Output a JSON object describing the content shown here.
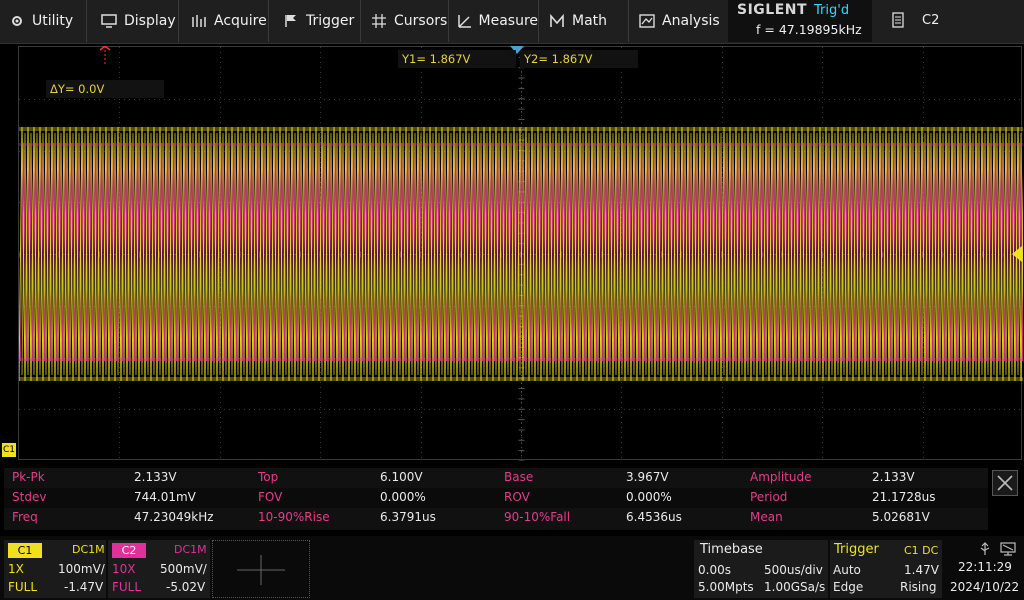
{
  "menu": {
    "utility": "Utility",
    "display": "Display",
    "acquire": "Acquire",
    "trigger": "Trigger",
    "cursors": "Cursors",
    "measure": "Measure",
    "math": "Math",
    "analysis": "Analysis"
  },
  "brand": {
    "logo": "SIGLENT",
    "trig_state": "Trig'd",
    "freq": "f = 47.19895kHz"
  },
  "channel_select": "C2",
  "cursors": {
    "y1": "Y1= 1.867V",
    "y2": "Y2= 1.867V",
    "delta": "ΔY= 0.0V"
  },
  "grid_marker": "C1",
  "measurements": [
    {
      "label": "Pk-Pk",
      "value": "2.133V"
    },
    {
      "label": "Top",
      "value": "6.100V"
    },
    {
      "label": "Base",
      "value": "3.967V"
    },
    {
      "label": "Amplitude",
      "value": "2.133V"
    },
    {
      "label": "Stdev",
      "value": "744.01mV"
    },
    {
      "label": "FOV",
      "value": "0.000%"
    },
    {
      "label": "ROV",
      "value": "0.000%"
    },
    {
      "label": "Period",
      "value": "21.1728us"
    },
    {
      "label": "Freq",
      "value": "47.23049kHz"
    },
    {
      "label": "10-90%Rise",
      "value": "6.3791us"
    },
    {
      "label": "90-10%Fall",
      "value": "6.4536us"
    },
    {
      "label": "Mean",
      "value": "5.02681V"
    }
  ],
  "channels": {
    "c1": {
      "name": "C1",
      "coupling": "DC1M",
      "probe": "1X",
      "scale": "100mV/",
      "bw": "FULL",
      "offset": "-1.47V",
      "color": "#f0e020"
    },
    "c2": {
      "name": "C2",
      "coupling": "DC1M",
      "probe": "10X",
      "scale": "500mV/",
      "bw": "FULL",
      "offset": "-5.02V",
      "color": "#e0309a"
    }
  },
  "timebase": {
    "title": "Timebase",
    "delay": "0.00s",
    "scale": "500us/div",
    "memory": "5.00Mpts",
    "sample_rate": "1.00GSa/s"
  },
  "trigger": {
    "title": "Trigger",
    "source": "C1 DC",
    "mode": "Auto",
    "level": "1.47V",
    "type": "Edge",
    "slope": "Rising"
  },
  "clock": {
    "time": "22:11:29",
    "date": "2024/10/22"
  },
  "colors": {
    "ch1": "#f0e020",
    "ch2": "#e0309a",
    "measure_label": "#e33c8a",
    "trig_state": "#33d6ff"
  }
}
